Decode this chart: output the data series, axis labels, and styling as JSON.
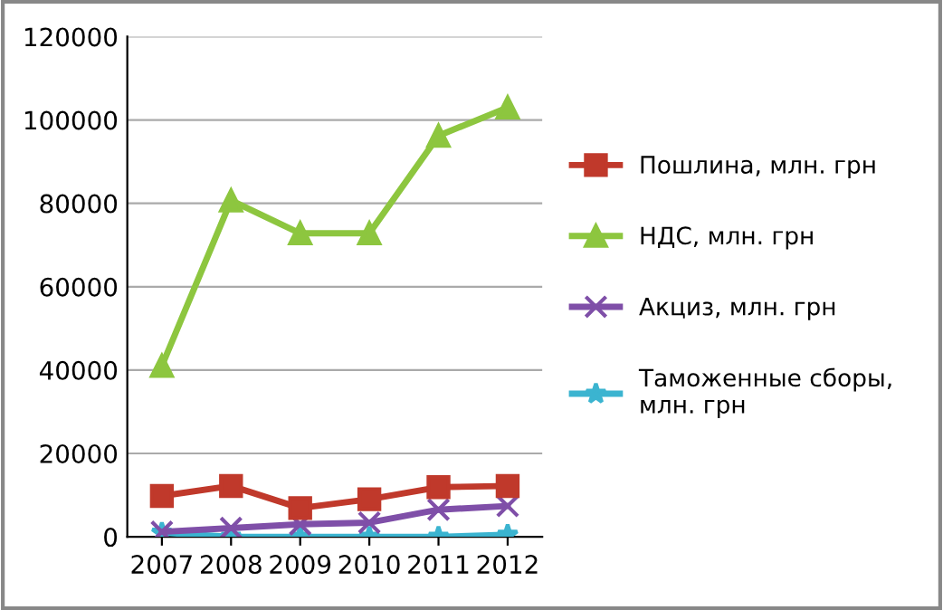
{
  "chart_data": {
    "type": "line",
    "categories": [
      "2007",
      "2008",
      "2009",
      "2010",
      "2011",
      "2012"
    ],
    "series": [
      {
        "name": "Пошлина, млн. грн",
        "color": "#c0392b",
        "marker": "square",
        "values": [
          9800,
          12200,
          6900,
          9000,
          11900,
          12200
        ]
      },
      {
        "name": "НДС, млн. грн",
        "color": "#8dc63f",
        "marker": "triangle",
        "values": [
          41000,
          80700,
          72800,
          72800,
          96200,
          103000
        ]
      },
      {
        "name": "Акциз, млн. грн",
        "color": "#7f4fa8",
        "marker": "cross",
        "values": [
          1200,
          2100,
          3000,
          3400,
          6500,
          7400
        ]
      },
      {
        "name": "Таможенные сборы,\nмлн. грн",
        "color": "#3bb4d0",
        "marker": "star",
        "values": [
          1000,
          0,
          0,
          0,
          0,
          500
        ]
      }
    ],
    "ylim": [
      0,
      120000
    ],
    "yticks": [
      0,
      20000,
      40000,
      60000,
      80000,
      100000,
      120000
    ],
    "grid": "y",
    "legend": "right"
  }
}
